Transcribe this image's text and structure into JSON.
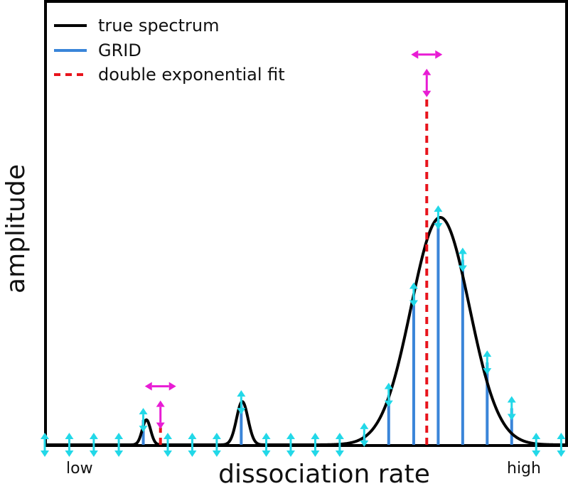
{
  "chart_data": {
    "type": "line",
    "title": "",
    "xlabel": "dissociation rate",
    "ylabel": "amplitude",
    "x_tick_labels": [
      "low",
      "high"
    ],
    "xlim": [
      0,
      1
    ],
    "ylim": [
      0,
      1
    ],
    "legend_position": "top-left",
    "grid": false,
    "colors": {
      "true_spectrum": "#000000",
      "grid": "#3a85d9",
      "fit": "#e8141c",
      "grid_arrows": "#22d8e8",
      "fit_arrows": "#e81cd4"
    },
    "legend": [
      {
        "label": "true spectrum",
        "style": "solid",
        "color": "#000000"
      },
      {
        "label": "GRID",
        "style": "solid",
        "color": "#3a85d9"
      },
      {
        "label": "double exponential fit",
        "style": "dashed",
        "color": "#e8141c"
      }
    ],
    "true_spectrum": {
      "peaks": [
        {
          "center": 0.195,
          "width": 0.008,
          "amplitude": 0.11
        },
        {
          "center": 0.379,
          "width": 0.011,
          "amplitude": 0.19
        },
        {
          "center": 0.759,
          "width": 0.056,
          "amplitude": 1.0
        }
      ]
    },
    "grid_series": {
      "name": "GRID",
      "x": [
        0.0,
        0.047,
        0.094,
        0.142,
        0.189,
        0.236,
        0.283,
        0.33,
        0.377,
        0.425,
        0.472,
        0.519,
        0.566,
        0.613,
        0.66,
        0.708,
        0.755,
        0.802,
        0.849,
        0.896,
        0.943,
        0.991
      ],
      "values": [
        0,
        0,
        0,
        0,
        0.109,
        0,
        0,
        0,
        0.187,
        0,
        0,
        0,
        0,
        0.044,
        0.22,
        0.661,
        1.0,
        0.814,
        0.362,
        0.161,
        0,
        0
      ]
    },
    "fit_series": {
      "name": "double exponential fit",
      "x": [
        0.222,
        0.733
      ],
      "values": [
        0.076,
        1.535
      ]
    }
  }
}
